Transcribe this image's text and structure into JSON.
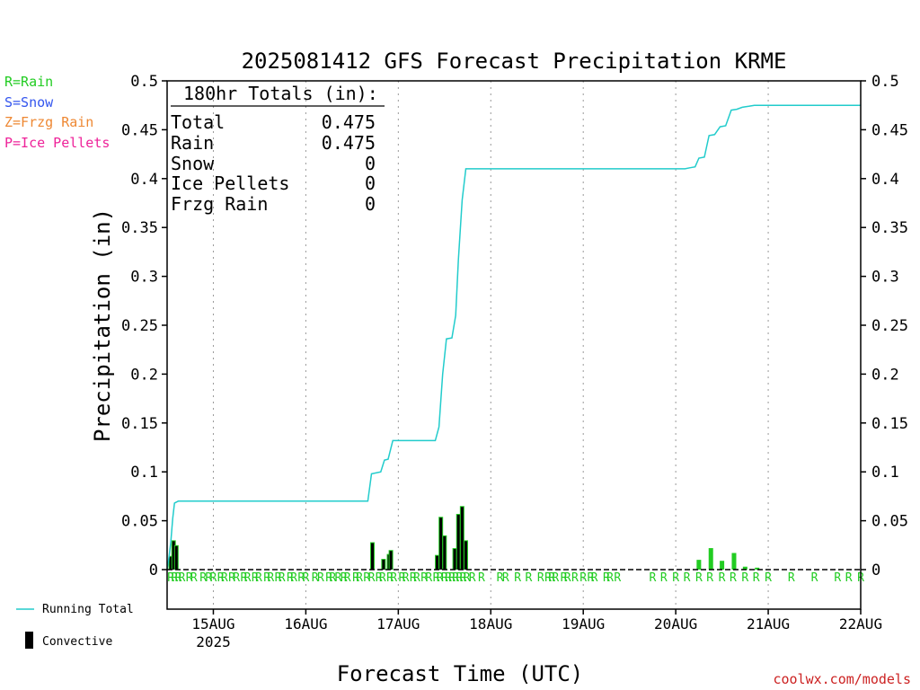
{
  "chart_data": {
    "type": "bar",
    "title": "2025081412 GFS Forecast Precipitation KRME",
    "xlabel": "Forecast Time (UTC)",
    "ylabel": "Precipitation (in)",
    "ylim": [
      0,
      0.5
    ],
    "yticks": [
      "0",
      "0.05",
      "0.1",
      "0.15",
      "0.2",
      "0.25",
      "0.3",
      "0.35",
      "0.4",
      "0.45",
      "0.5"
    ],
    "xlim_days": [
      14.5,
      22.0
    ],
    "xticks": [
      {
        "day": 15,
        "label": "15AUG",
        "sub": "2025"
      },
      {
        "day": 16,
        "label": "16AUG",
        "sub": ""
      },
      {
        "day": 17,
        "label": "17AUG",
        "sub": ""
      },
      {
        "day": 18,
        "label": "18AUG",
        "sub": ""
      },
      {
        "day": 19,
        "label": "19AUG",
        "sub": ""
      },
      {
        "day": 20,
        "label": "20AUG",
        "sub": ""
      },
      {
        "day": 21,
        "label": "21AUG",
        "sub": ""
      },
      {
        "day": 22,
        "label": "22AUG",
        "sub": ""
      }
    ],
    "grid": "vertical-dotted",
    "precip_type_legend": [
      {
        "text": "R=Rain",
        "color": "#22cc22"
      },
      {
        "text": "S=Snow",
        "color": "#3355ee"
      },
      {
        "text": "Z=Frzg Rain",
        "color": "#ee8833"
      },
      {
        "text": "P=Ice Pellets",
        "color": "#ee2299"
      }
    ],
    "totals": {
      "heading": "180hr Totals (in):",
      "rows": [
        {
          "label": "Total",
          "value": "0.475"
        },
        {
          "label": "Rain",
          "value": "0.475"
        },
        {
          "label": "Snow",
          "value": "0"
        },
        {
          "label": "Ice Pellets",
          "value": "0"
        },
        {
          "label": "Frzg Rain",
          "value": "0"
        }
      ]
    },
    "series_legend": [
      {
        "text": "Running Total",
        "color": "#22cccc"
      },
      {
        "text": "Convective",
        "color": "#000000"
      }
    ],
    "credit": "coolwx.com/models",
    "running_total": [
      [
        14.5,
        0
      ],
      [
        14.52,
        0.013
      ],
      [
        14.54,
        0.028
      ],
      [
        14.56,
        0.052
      ],
      [
        14.58,
        0.068
      ],
      [
        14.62,
        0.07
      ],
      [
        16.67,
        0.07
      ],
      [
        16.71,
        0.098
      ],
      [
        16.81,
        0.1
      ],
      [
        16.85,
        0.112
      ],
      [
        16.89,
        0.113
      ],
      [
        16.94,
        0.132
      ],
      [
        17.4,
        0.132
      ],
      [
        17.44,
        0.146
      ],
      [
        17.48,
        0.2
      ],
      [
        17.52,
        0.236
      ],
      [
        17.58,
        0.237
      ],
      [
        17.62,
        0.26
      ],
      [
        17.65,
        0.317
      ],
      [
        17.69,
        0.378
      ],
      [
        17.73,
        0.41
      ],
      [
        19.4,
        0.41
      ],
      [
        20.1,
        0.41
      ],
      [
        20.15,
        0.411
      ],
      [
        20.21,
        0.412
      ],
      [
        20.25,
        0.421
      ],
      [
        20.31,
        0.422
      ],
      [
        20.36,
        0.444
      ],
      [
        20.42,
        0.445
      ],
      [
        20.48,
        0.453
      ],
      [
        20.54,
        0.454
      ],
      [
        20.6,
        0.47
      ],
      [
        20.66,
        0.471
      ],
      [
        20.72,
        0.473
      ],
      [
        20.79,
        0.474
      ],
      [
        20.85,
        0.475
      ],
      [
        22.0,
        0.475
      ]
    ],
    "bars": [
      {
        "x": 14.54,
        "value": 0.014,
        "kind": "convective"
      },
      {
        "x": 14.57,
        "value": 0.03,
        "kind": "convective"
      },
      {
        "x": 14.6,
        "value": 0.025,
        "kind": "convective"
      },
      {
        "x": 16.72,
        "value": 0.028,
        "kind": "convective"
      },
      {
        "x": 16.84,
        "value": 0.011,
        "kind": "convective"
      },
      {
        "x": 16.9,
        "value": 0.016,
        "kind": "convective"
      },
      {
        "x": 16.92,
        "value": 0.02,
        "kind": "convective"
      },
      {
        "x": 17.42,
        "value": 0.015,
        "kind": "convective"
      },
      {
        "x": 17.46,
        "value": 0.054,
        "kind": "convective"
      },
      {
        "x": 17.5,
        "value": 0.035,
        "kind": "convective"
      },
      {
        "x": 17.61,
        "value": 0.022,
        "kind": "convective"
      },
      {
        "x": 17.65,
        "value": 0.057,
        "kind": "convective"
      },
      {
        "x": 17.69,
        "value": 0.065,
        "kind": "convective"
      },
      {
        "x": 17.73,
        "value": 0.03,
        "kind": "convective"
      },
      {
        "x": 20.25,
        "value": 0.01,
        "kind": "rain"
      },
      {
        "x": 20.38,
        "value": 0.022,
        "kind": "rain"
      },
      {
        "x": 20.5,
        "value": 0.009,
        "kind": "rain"
      },
      {
        "x": 20.63,
        "value": 0.017,
        "kind": "rain"
      },
      {
        "x": 20.75,
        "value": 0.003,
        "kind": "rain"
      },
      {
        "x": 20.88,
        "value": 0.002,
        "kind": "rain"
      }
    ],
    "ptype_marker": "R",
    "ptype_marks": [
      14.54,
      14.58,
      14.62,
      14.66,
      14.74,
      14.79,
      14.89,
      14.95,
      15.0,
      15.08,
      15.12,
      15.2,
      15.25,
      15.33,
      15.37,
      15.45,
      15.49,
      15.58,
      15.62,
      15.7,
      15.74,
      15.83,
      15.87,
      15.95,
      16.0,
      16.1,
      16.16,
      16.25,
      16.29,
      16.35,
      16.41,
      16.45,
      16.54,
      16.58,
      16.66,
      16.71,
      16.79,
      16.83,
      16.91,
      16.95,
      17.04,
      17.08,
      17.16,
      17.2,
      17.28,
      17.33,
      17.41,
      17.45,
      17.5,
      17.54,
      17.58,
      17.62,
      17.66,
      17.7,
      17.74,
      17.8,
      17.9,
      18.1,
      18.16,
      18.29,
      18.41,
      18.54,
      18.62,
      18.66,
      18.7,
      18.79,
      18.83,
      18.91,
      19.0,
      19.08,
      19.12,
      19.25,
      19.29,
      19.37,
      19.75,
      19.87,
      20.0,
      20.12,
      20.25,
      20.37,
      20.5,
      20.62,
      20.75,
      20.87,
      21.0,
      21.25,
      21.5,
      21.75,
      21.87,
      22.0
    ]
  }
}
